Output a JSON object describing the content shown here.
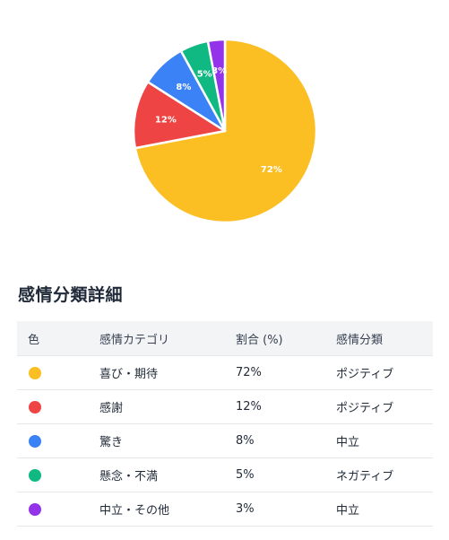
{
  "chart_data": {
    "type": "pie",
    "title": "",
    "slices": [
      {
        "label": "喜び・期待",
        "value": 72,
        "label_text": "72%",
        "color": "#fbbf24"
      },
      {
        "label": "感謝",
        "value": 12,
        "label_text": "12%",
        "color": "#ef4444"
      },
      {
        "label": "驚き",
        "value": 8,
        "label_text": "8%",
        "color": "#3b82f6"
      },
      {
        "label": "懸念・不満",
        "value": 5,
        "label_text": "5%",
        "color": "#10b981"
      },
      {
        "label": "中立・その他",
        "value": 3,
        "label_text": "3%",
        "color": "#9333ea"
      }
    ]
  },
  "section": {
    "title": "感情分類詳細"
  },
  "table": {
    "headers": {
      "color": "色",
      "category": "感情カテゴリ",
      "ratio": "割合 (%)",
      "classification": "感情分類"
    },
    "rows": [
      {
        "color": "#fbbf24",
        "category": "喜び・期待",
        "ratio": "72%",
        "classification": "ポジティブ"
      },
      {
        "color": "#ef4444",
        "category": "感謝",
        "ratio": "12%",
        "classification": "ポジティブ"
      },
      {
        "color": "#3b82f6",
        "category": "驚き",
        "ratio": "8%",
        "classification": "中立"
      },
      {
        "color": "#10b981",
        "category": "懸念・不満",
        "ratio": "5%",
        "classification": "ネガティブ"
      },
      {
        "color": "#9333ea",
        "category": "中立・その他",
        "ratio": "3%",
        "classification": "中立"
      }
    ]
  }
}
